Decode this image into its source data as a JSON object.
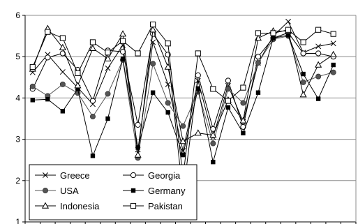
{
  "chart_data": {
    "type": "line",
    "title": "",
    "xlabel": "",
    "ylabel": "",
    "ylim": [
      1,
      6
    ],
    "yticks": [
      "1",
      "2",
      "3",
      "4",
      "5",
      "6"
    ],
    "x": [
      1,
      2,
      3,
      4,
      5,
      6,
      7,
      8,
      9,
      10,
      11,
      12,
      13,
      14,
      15,
      16,
      17,
      18,
      19,
      20,
      21,
      22
    ],
    "grid": "horizontal",
    "legend": {
      "placement": "bottom-left",
      "columns": 2
    },
    "series": [
      {
        "name": "Greece",
        "marker": "x",
        "color": "#000000",
        "values": [
          4.62,
          5.05,
          4.63,
          4.25,
          3.85,
          4.72,
          5.28,
          2.75,
          5.35,
          4.33,
          2.72,
          4.42,
          3.05,
          4.3,
          3.42,
          4.85,
          5.5,
          5.85,
          5.1,
          5.25,
          5.32,
          null
        ]
      },
      {
        "name": "Georgia",
        "marker": "circle-open",
        "color": "#000000",
        "values": [
          4.22,
          4.98,
          5.08,
          4.68,
          3.93,
          5.15,
          5.12,
          3.35,
          5.55,
          5.05,
          1.65,
          4.55,
          3.25,
          4.42,
          3.3,
          5.0,
          5.45,
          5.58,
          5.08,
          5.08,
          5.0,
          null
        ]
      },
      {
        "name": "USA",
        "marker": "circle-filled",
        "color": "#555555",
        "values": [
          4.28,
          4.05,
          4.33,
          4.12,
          3.55,
          4.1,
          4.92,
          2.55,
          4.83,
          3.88,
          3.32,
          4.15,
          2.9,
          4.22,
          3.88,
          4.85,
          5.42,
          5.5,
          4.38,
          4.52,
          4.62,
          null
        ]
      },
      {
        "name": "Germany",
        "marker": "square-filled",
        "color": "#000000",
        "values": [
          3.95,
          3.97,
          3.68,
          4.22,
          2.6,
          3.5,
          4.95,
          2.8,
          4.13,
          3.65,
          2.62,
          4.23,
          2.45,
          3.77,
          3.15,
          4.13,
          5.45,
          5.52,
          4.58,
          3.98,
          4.8,
          null
        ]
      },
      {
        "name": "Indonesia",
        "marker": "triangle-open",
        "color": "#000000",
        "values": [
          4.7,
          5.68,
          5.22,
          4.3,
          5.2,
          4.95,
          5.55,
          2.62,
          5.65,
          4.75,
          2.95,
          3.15,
          3.1,
          3.95,
          3.45,
          5.45,
          5.62,
          5.62,
          4.08,
          4.8,
          5.05,
          null
        ]
      },
      {
        "name": "Pakistan",
        "marker": "square-open",
        "color": "#000000",
        "values": [
          4.75,
          5.6,
          5.45,
          4.6,
          5.35,
          5.1,
          5.38,
          5.08,
          5.78,
          5.32,
          2.08,
          5.08,
          4.22,
          3.93,
          4.25,
          5.57,
          5.57,
          5.65,
          5.35,
          5.65,
          5.55,
          null
        ]
      }
    ]
  }
}
